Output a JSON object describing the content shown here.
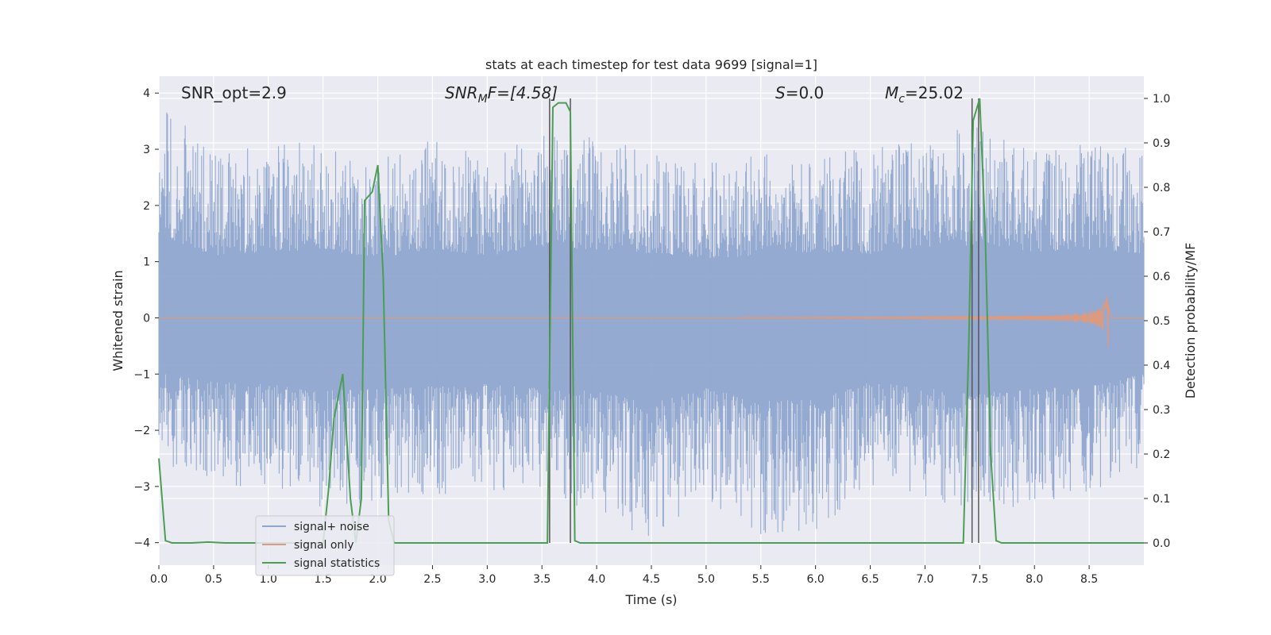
{
  "chart_data": {
    "type": "line",
    "title": "stats at each timestep for test data 9699 [signal=1]",
    "xlabel": "Time (s)",
    "ylabel_left": "Whitened strain",
    "ylabel_right": "Detection probability/MF",
    "xlim": [
      0.0,
      9.0
    ],
    "ylim_left": [
      -4.4,
      4.3
    ],
    "ylim_right": [
      -0.05,
      1.05
    ],
    "x_ticks": [
      0.0,
      0.5,
      1.0,
      1.5,
      2.0,
      2.5,
      3.0,
      3.5,
      4.0,
      4.5,
      5.0,
      5.5,
      6.0,
      6.5,
      7.0,
      7.5,
      8.0,
      8.5
    ],
    "x_tick_labels": [
      "0.0",
      "0.5",
      "1.0",
      "1.5",
      "2.0",
      "2.5",
      "3.0",
      "3.5",
      "4.0",
      "4.5",
      "5.0",
      "5.5",
      "6.0",
      "6.5",
      "7.0",
      "7.5",
      "8.0",
      "8.5"
    ],
    "y_left_ticks": [
      -4,
      -3,
      -2,
      -1,
      0,
      1,
      2,
      3,
      4
    ],
    "y_left_tick_labels": [
      "−4",
      "−3",
      "−2",
      "−1",
      "0",
      "1",
      "2",
      "3",
      "4"
    ],
    "y_right_ticks": [
      0.0,
      0.1,
      0.2,
      0.3,
      0.4,
      0.5,
      0.6,
      0.7,
      0.8,
      0.9,
      1.0
    ],
    "y_right_tick_labels": [
      "0.0",
      "0.1",
      "0.2",
      "0.3",
      "0.4",
      "0.5",
      "0.6",
      "0.7",
      "0.8",
      "0.9",
      "1.0"
    ],
    "grid": true,
    "legend_position": "lower-left",
    "annotations": {
      "snr_opt": "SNR_opt=2.9",
      "snr_mf_main": "SNR",
      "snr_mf_sub": "M",
      "snr_mf_rest": "F=[4.58]",
      "s_var": "S",
      "s_rest": "=0.0",
      "mc_var": "M",
      "mc_sub": "c",
      "mc_rest": "=25.02"
    },
    "vertical_markers": [
      3.57,
      3.76,
      7.43,
      7.49
    ],
    "noise_envelope": {
      "x": [
        0.0,
        0.5,
        1.0,
        1.5,
        2.0,
        2.5,
        3.0,
        3.5,
        4.0,
        4.5,
        5.0,
        5.5,
        6.0,
        6.5,
        7.0,
        7.5,
        8.0,
        8.5,
        9.0
      ],
      "upper": [
        3.9,
        2.9,
        3.1,
        3.2,
        2.8,
        3.2,
        2.9,
        3.3,
        3.2,
        3.0,
        2.8,
        2.9,
        3.1,
        3.0,
        3.3,
        3.4,
        3.1,
        3.2,
        3.0
      ],
      "lower": [
        -2.6,
        -3.0,
        -3.1,
        -3.4,
        -3.3,
        -3.2,
        -3.1,
        -3.3,
        -3.4,
        -4.0,
        -3.3,
        -3.9,
        -3.8,
        -3.0,
        -3.3,
        -3.5,
        -3.3,
        -3.2,
        -2.6
      ]
    },
    "signal_chirp": {
      "start": 5.3,
      "peak_time": 8.68,
      "peak_amplitude": 0.68
    },
    "series": [
      {
        "name": "signal+ noise",
        "color": "#8fa6cf"
      },
      {
        "name": "signal only",
        "color": "#dd9a7e"
      },
      {
        "name": "signal statistics",
        "color": "#4c9e54",
        "x": [
          0.0,
          0.06,
          0.12,
          0.3,
          0.45,
          0.6,
          0.9,
          1.2,
          1.5,
          1.55,
          1.6,
          1.68,
          1.75,
          1.8,
          1.85,
          1.88,
          1.95,
          2.0,
          2.05,
          2.1,
          2.15,
          2.5,
          3.0,
          3.5,
          3.55,
          3.6,
          3.65,
          3.72,
          3.76,
          3.8,
          3.85,
          4.0,
          5.0,
          6.0,
          7.0,
          7.35,
          7.4,
          7.44,
          7.5,
          7.55,
          7.6,
          7.65,
          7.7,
          8.0,
          8.5,
          9.0
        ],
        "y": [
          0.19,
          0.005,
          0.0,
          0.0,
          0.002,
          0.0,
          0.0,
          0.0,
          0.0,
          0.12,
          0.28,
          0.38,
          0.1,
          0.0,
          0.1,
          0.77,
          0.79,
          0.85,
          0.6,
          0.05,
          0.0,
          0.0,
          0.0,
          0.0,
          0.0,
          0.98,
          0.99,
          0.99,
          0.97,
          0.005,
          0.0,
          0.0,
          0.0,
          0.0,
          0.0,
          0.0,
          0.45,
          0.95,
          1.0,
          0.7,
          0.2,
          0.005,
          0.0,
          0.0,
          0.0,
          0.0
        ]
      }
    ]
  }
}
